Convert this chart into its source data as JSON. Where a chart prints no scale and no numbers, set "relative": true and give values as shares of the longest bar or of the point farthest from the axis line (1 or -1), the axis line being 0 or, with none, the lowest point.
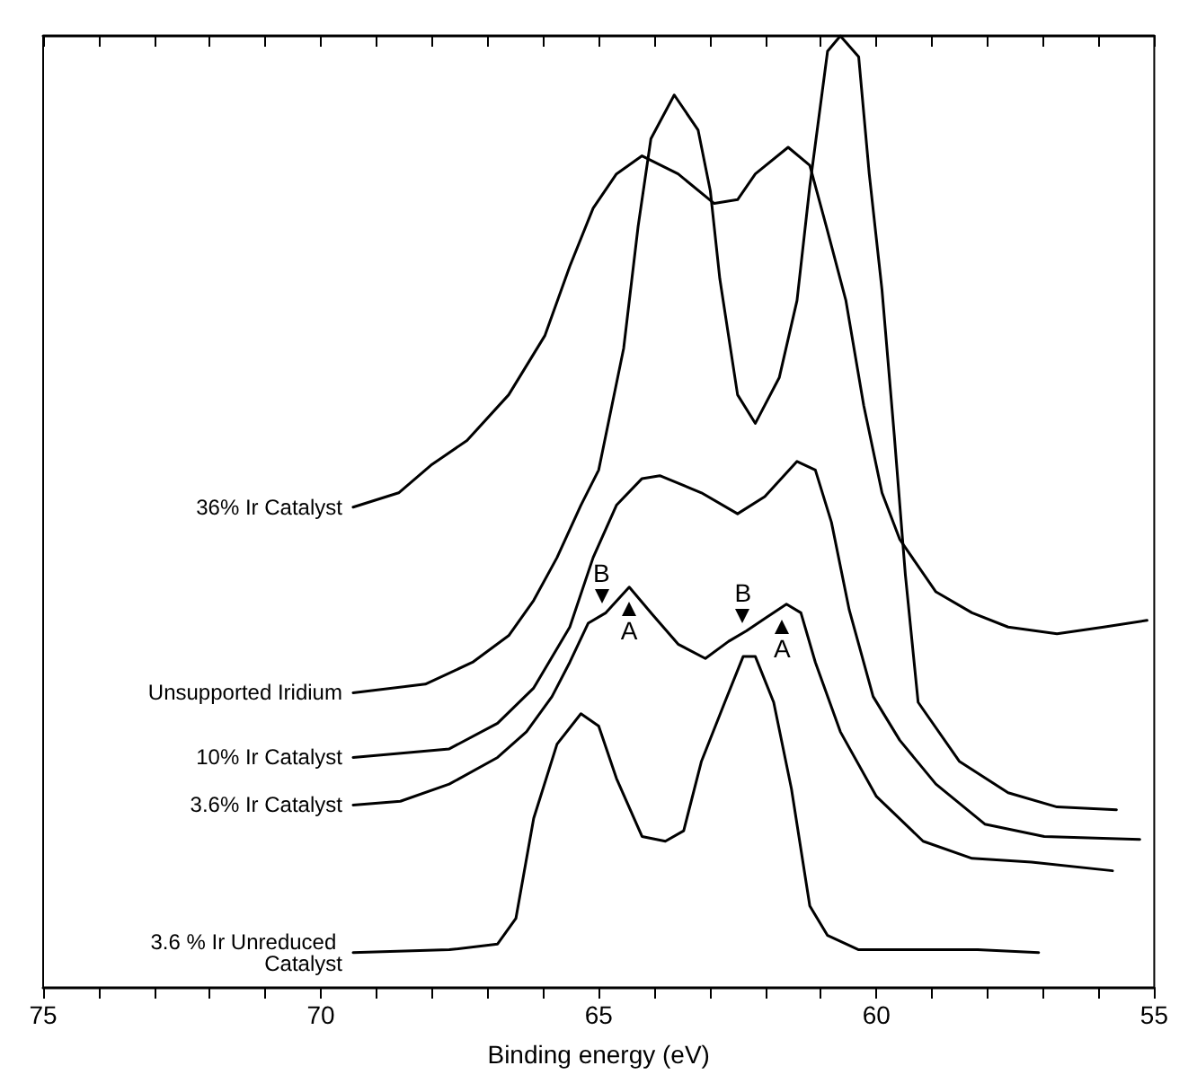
{
  "chart_data": {
    "type": "line",
    "xlabel": "Binding energy (eV)",
    "relative": true,
    "xlim": [
      75,
      55
    ],
    "xticks": [
      75,
      {
        "value": 74,
        "label": null
      },
      {
        "value": 73,
        "label": null
      },
      {
        "value": 72,
        "label": null
      },
      {
        "value": 71,
        "label": null
      },
      70,
      {
        "value": 69,
        "label": null
      },
      {
        "value": 68,
        "label": null
      },
      {
        "value": 67,
        "label": null
      },
      {
        "value": 66,
        "label": null
      },
      65,
      {
        "value": 64,
        "label": null
      },
      {
        "value": 63,
        "label": null
      },
      {
        "value": 62,
        "label": null
      },
      {
        "value": 61,
        "label": null
      },
      60,
      {
        "value": 59,
        "label": null
      },
      {
        "value": 58,
        "label": null
      },
      {
        "value": 57,
        "label": null
      },
      {
        "value": 56,
        "label": null
      },
      55
    ],
    "legend": false,
    "marker": "none",
    "line_style": "solid",
    "grid": false,
    "series": [
      {
        "name": "36% Ir Catalyst",
        "color": "#000000",
        "x": [
          69.42,
          68.6,
          68.02,
          67.37,
          66.62,
          65.97,
          65.52,
          65.1,
          64.68,
          64.22,
          63.57,
          62.92,
          62.5,
          62.18,
          61.59,
          61.2,
          60.88,
          60.55,
          60.23,
          59.9,
          59.58,
          58.93,
          58.28,
          57.63,
          56.75,
          55.91,
          55.13
        ],
        "values": [
          0.505,
          0.52,
          0.549,
          0.575,
          0.623,
          0.685,
          0.758,
          0.819,
          0.855,
          0.874,
          0.855,
          0.824,
          0.828,
          0.855,
          0.883,
          0.864,
          0.795,
          0.722,
          0.612,
          0.52,
          0.471,
          0.416,
          0.394,
          0.379,
          0.372,
          0.379,
          0.386
        ]
      },
      {
        "name": "Unsupported Iridium",
        "color": "#000000",
        "x": [
          69.42,
          68.12,
          67.27,
          66.62,
          66.17,
          65.75,
          65.32,
          65.0,
          64.55,
          64.29,
          64.06,
          63.64,
          63.21,
          62.99,
          62.82,
          62.5,
          62.18,
          61.75,
          61.43,
          61.2,
          60.88,
          60.65,
          60.32,
          60.13,
          59.9,
          59.68,
          59.48,
          59.25,
          58.51,
          57.63,
          56.75,
          55.68
        ],
        "values": [
          0.31,
          0.319,
          0.342,
          0.37,
          0.407,
          0.452,
          0.507,
          0.544,
          0.672,
          0.8,
          0.892,
          0.938,
          0.901,
          0.837,
          0.745,
          0.623,
          0.593,
          0.641,
          0.722,
          0.842,
          0.984,
          1,
          0.978,
          0.855,
          0.733,
          0.581,
          0.434,
          0.3,
          0.238,
          0.205,
          0.19,
          0.187
        ]
      },
      {
        "name": "10% Ir Catalyst",
        "color": "#000000",
        "x": [
          69.42,
          67.69,
          66.82,
          66.17,
          65.52,
          65.1,
          64.68,
          64.22,
          63.9,
          63.15,
          62.5,
          62.01,
          61.43,
          61.1,
          60.81,
          60.49,
          60.06,
          59.58,
          58.93,
          58.05,
          56.98,
          55.26
        ],
        "values": [
          0.242,
          0.251,
          0.278,
          0.315,
          0.379,
          0.452,
          0.507,
          0.535,
          0.538,
          0.52,
          0.498,
          0.516,
          0.553,
          0.544,
          0.489,
          0.397,
          0.306,
          0.26,
          0.214,
          0.172,
          0.159,
          0.156
        ]
      },
      {
        "name": "3.6% Ir Catalyst",
        "color": "#000000",
        "x": [
          69.42,
          68.57,
          67.69,
          66.82,
          66.3,
          65.84,
          65.52,
          65.19,
          64.87,
          64.45,
          64.03,
          63.57,
          63.08,
          62.66,
          62.34,
          62.01,
          61.62,
          61.36,
          61.1,
          60.65,
          60.0,
          59.16,
          58.28,
          57.21,
          55.75
        ],
        "values": [
          0.192,
          0.196,
          0.214,
          0.242,
          0.269,
          0.306,
          0.342,
          0.383,
          0.394,
          0.421,
          0.392,
          0.361,
          0.346,
          0.364,
          0.375,
          0.388,
          0.403,
          0.394,
          0.342,
          0.269,
          0.201,
          0.154,
          0.136,
          0.132,
          0.123
        ]
      },
      {
        "name": "3.6 % Ir Unreduced Catalyst",
        "color": "#000000",
        "x": [
          69.42,
          67.69,
          66.82,
          66.49,
          66.17,
          65.75,
          65.32,
          65.0,
          64.68,
          64.22,
          63.8,
          63.47,
          63.15,
          62.73,
          62.4,
          62.18,
          61.85,
          61.53,
          61.2,
          60.88,
          60.32,
          58.18,
          57.08
        ],
        "values": [
          0.037,
          0.04,
          0.046,
          0.073,
          0.178,
          0.256,
          0.288,
          0.275,
          0.22,
          0.159,
          0.154,
          0.165,
          0.238,
          0.3,
          0.348,
          0.348,
          0.3,
          0.209,
          0.086,
          0.055,
          0.04,
          0.04,
          0.037
        ]
      }
    ],
    "annotations": [
      {
        "text": "B",
        "x": 64.95,
        "y": 0.4
      },
      {
        "text": "A",
        "x": 64.45,
        "y": 0.41
      },
      {
        "text": "B",
        "x": 62.4,
        "y": 0.38
      },
      {
        "text": "A",
        "x": 61.7,
        "y": 0.39
      }
    ]
  }
}
